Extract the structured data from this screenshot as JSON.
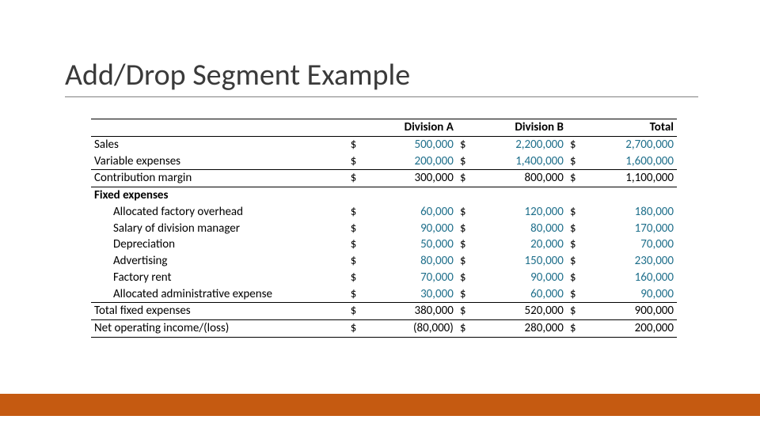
{
  "title": "Add/Drop Segment Example",
  "colors": {
    "input_value": "#1f6f8b",
    "calc_value": "#000000",
    "text": "#000000",
    "title_text": "#3a3a3a",
    "title_underline": "#808080",
    "border": "#000000",
    "footer_bar": "#c55a11",
    "background": "#ffffff"
  },
  "typography": {
    "title_fontsize_pt": 28,
    "body_fontsize_pt": 11,
    "font_family": "Calibri"
  },
  "table": {
    "columns": [
      {
        "key": "label",
        "header": ""
      },
      {
        "key": "divA",
        "header": "Division A"
      },
      {
        "key": "divB",
        "header": "Division B"
      },
      {
        "key": "total",
        "header": "Total"
      }
    ],
    "currency_symbol": "$",
    "rows": [
      {
        "label": "Sales",
        "divA": "500,000",
        "divB": "2,200,000",
        "total": "2,700,000",
        "style": "input",
        "indent": false,
        "underline": "none"
      },
      {
        "label": "Variable expenses",
        "divA": "200,000",
        "divB": "1,400,000",
        "total": "1,600,000",
        "style": "input",
        "indent": false,
        "underline": "thin"
      },
      {
        "label": "Contribution margin",
        "divA": "300,000",
        "divB": "800,000",
        "total": "1,100,000",
        "style": "calc",
        "indent": false,
        "underline": "thick"
      },
      {
        "label": "Fixed expenses",
        "divA": "",
        "divB": "",
        "total": "",
        "style": "header",
        "indent": false,
        "underline": "none",
        "bold": true,
        "no_currency": true
      },
      {
        "label": "Allocated factory overhead",
        "divA": "60,000",
        "divB": "120,000",
        "total": "180,000",
        "style": "input",
        "indent": true,
        "underline": "none"
      },
      {
        "label": "Salary of division manager",
        "divA": "90,000",
        "divB": "80,000",
        "total": "170,000",
        "style": "input",
        "indent": true,
        "underline": "none"
      },
      {
        "label": "Depreciation",
        "divA": "50,000",
        "divB": "20,000",
        "total": "70,000",
        "style": "input",
        "indent": true,
        "underline": "none"
      },
      {
        "label": "Advertising",
        "divA": "80,000",
        "divB": "150,000",
        "total": "230,000",
        "style": "input",
        "indent": true,
        "underline": "none"
      },
      {
        "label": "Factory rent",
        "divA": "70,000",
        "divB": "90,000",
        "total": "160,000",
        "style": "input",
        "indent": true,
        "underline": "none"
      },
      {
        "label": "Allocated administrative expense",
        "divA": "30,000",
        "divB": "60,000",
        "total": "90,000",
        "style": "input",
        "indent": true,
        "underline": "thin"
      },
      {
        "label": "Total fixed expenses",
        "divA": "380,000",
        "divB": "520,000",
        "total": "900,000",
        "style": "calc",
        "indent": false,
        "underline": "thin"
      },
      {
        "label": "Net operating income/(loss)",
        "divA": "(80,000)",
        "divB": "280,000",
        "total": "200,000",
        "style": "calc",
        "indent": false,
        "underline": "thick"
      }
    ]
  }
}
